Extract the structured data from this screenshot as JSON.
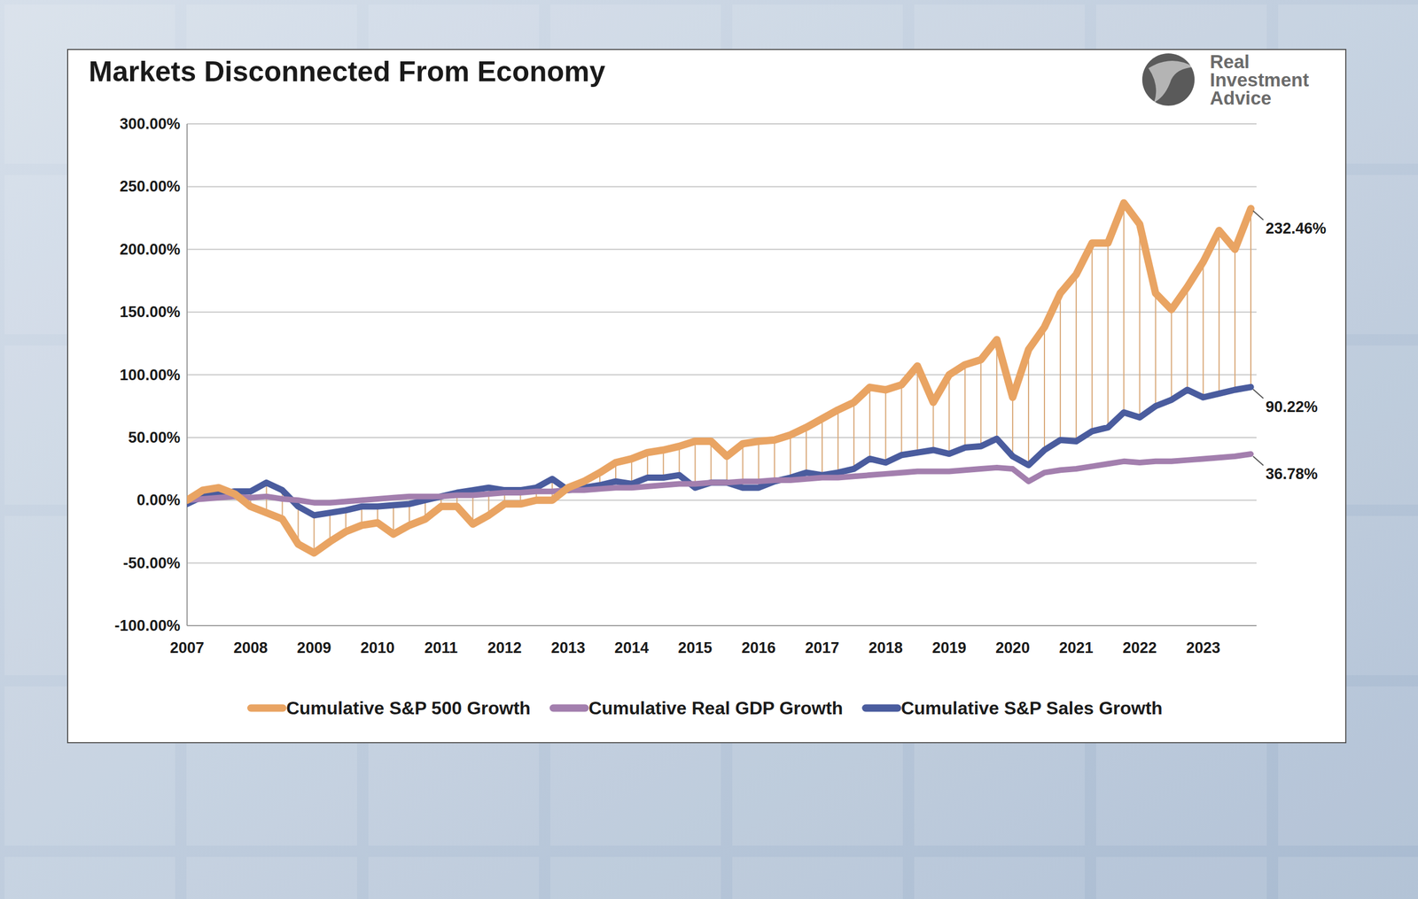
{
  "chart_data": {
    "type": "line",
    "title": "Markets Disconnected From Economy",
    "source": "Real Investment Advice",
    "categories": [
      "2007",
      null,
      null,
      null,
      "2008",
      null,
      null,
      null,
      "2009",
      null,
      null,
      null,
      "2010",
      null,
      null,
      null,
      "2011",
      null,
      null,
      null,
      "2012",
      null,
      null,
      null,
      "2013",
      null,
      null,
      null,
      "2014",
      null,
      null,
      null,
      "2015",
      null,
      null,
      null,
      "2016",
      null,
      null,
      null,
      "2017",
      null,
      null,
      null,
      "2018",
      null,
      null,
      null,
      "2019",
      null,
      null,
      null,
      "2020",
      null,
      null,
      null,
      "2021",
      null,
      null,
      null,
      "2022",
      null,
      null,
      null,
      "2023",
      null,
      null,
      null
    ],
    "series": [
      {
        "name": "Cumulative S&P 500 Growth",
        "color": "#e9a463",
        "values": [
          0,
          8,
          10,
          5,
          -5,
          -10,
          -15,
          -35,
          -42,
          -33,
          -25,
          -20,
          -18,
          -27,
          -20,
          -15,
          -5,
          -5,
          -19,
          -12,
          -3,
          -3,
          0,
          0,
          10,
          15,
          22,
          30,
          33,
          38,
          40,
          43,
          47,
          47,
          35,
          45,
          47,
          48,
          52,
          58,
          65,
          72,
          78,
          90,
          88,
          92,
          107,
          78,
          100,
          108,
          112,
          128,
          82,
          120,
          138,
          165,
          180,
          205,
          205,
          237,
          220,
          165,
          152,
          170,
          190,
          215,
          200,
          232.46
        ]
      },
      {
        "name": "Cumulative Real GDP Growth",
        "color": "#a37fae",
        "values": [
          0,
          1,
          2,
          3,
          2,
          3,
          1,
          0,
          -2,
          -2,
          -1,
          0,
          1,
          2,
          3,
          3,
          3,
          4,
          4,
          5,
          6,
          6,
          7,
          7,
          8,
          8,
          9,
          10,
          10,
          11,
          12,
          13,
          13,
          14,
          14,
          15,
          15,
          16,
          16,
          17,
          18,
          18,
          19,
          20,
          21,
          22,
          23,
          23,
          23,
          24,
          25,
          26,
          25,
          15,
          22,
          24,
          25,
          27,
          29,
          31,
          30,
          31,
          31,
          32,
          33,
          34,
          35,
          36.78
        ]
      },
      {
        "name": "Cumulative S&P Sales Growth",
        "color": "#4a5c9e",
        "values": [
          -3,
          3,
          5,
          7,
          7,
          14,
          8,
          -5,
          -12,
          -10,
          -8,
          -5,
          -5,
          -4,
          -3,
          0,
          3,
          6,
          8,
          10,
          8,
          8,
          10,
          17,
          8,
          10,
          12,
          15,
          13,
          18,
          18,
          20,
          10,
          14,
          14,
          10,
          10,
          15,
          18,
          22,
          20,
          22,
          25,
          33,
          30,
          36,
          38,
          40,
          37,
          42,
          43,
          49,
          35,
          28,
          40,
          48,
          47,
          55,
          58,
          70,
          66,
          75,
          80,
          88,
          82,
          85,
          88,
          90.22
        ]
      }
    ],
    "annotations": [
      {
        "text": "232.46%",
        "series": "Cumulative S&P 500 Growth"
      },
      {
        "text": "90.22%",
        "series": "Cumulative S&P Sales Growth"
      },
      {
        "text": "36.78%",
        "series": "Cumulative Real GDP Growth"
      }
    ],
    "ylim": [
      -100,
      300
    ],
    "yticks": [
      {
        "value": -100,
        "label": "-100.00%"
      },
      {
        "value": -50,
        "label": "-50.00%"
      },
      {
        "value": 0,
        "label": "0.00%"
      },
      {
        "value": 50,
        "label": "50.00%"
      },
      {
        "value": 100,
        "label": "100.00%"
      },
      {
        "value": 150,
        "label": "150.00%"
      },
      {
        "value": 200,
        "label": "200.00%"
      },
      {
        "value": 250,
        "label": "250.00%"
      },
      {
        "value": 300,
        "label": "300.00%"
      }
    ],
    "grid": true,
    "legend": "bottom"
  }
}
